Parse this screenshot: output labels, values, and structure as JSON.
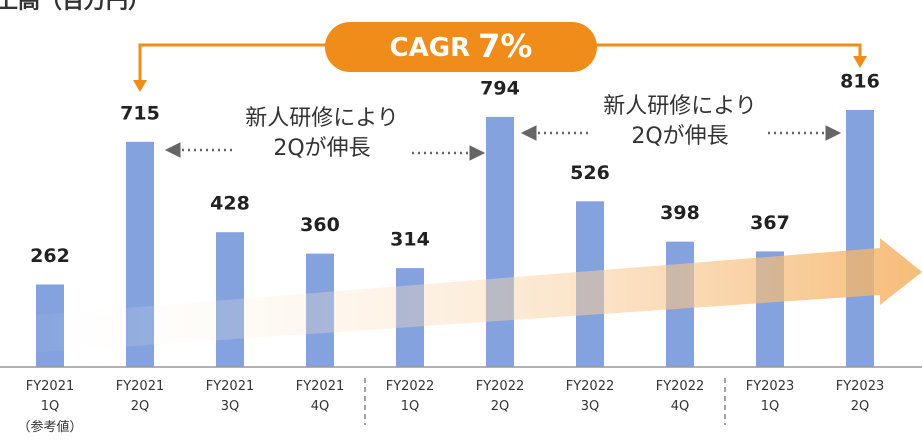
{
  "chart_data": {
    "type": "bar",
    "title": "上高（百万円）",
    "categories": [
      "FY2021\n1Q",
      "FY2021\n2Q",
      "FY2021\n3Q",
      "FY2021\n4Q",
      "FY2022\n1Q",
      "FY2022\n2Q",
      "FY2022\n3Q",
      "FY2022\n4Q",
      "FY2023\n1Q",
      "FY2023\n2Q"
    ],
    "values": [
      262,
      715,
      428,
      360,
      314,
      794,
      526,
      398,
      367,
      816
    ],
    "color": "#84a3de",
    "ylim": [
      0,
      1000
    ],
    "annotations": {
      "cagr_label": "CAGR",
      "cagr_value": "7%",
      "note_left": "新人研修により\n2Qが伸長",
      "note_right": "新人研修により\n2Qが伸長",
      "reference": "（参考値）"
    }
  }
}
